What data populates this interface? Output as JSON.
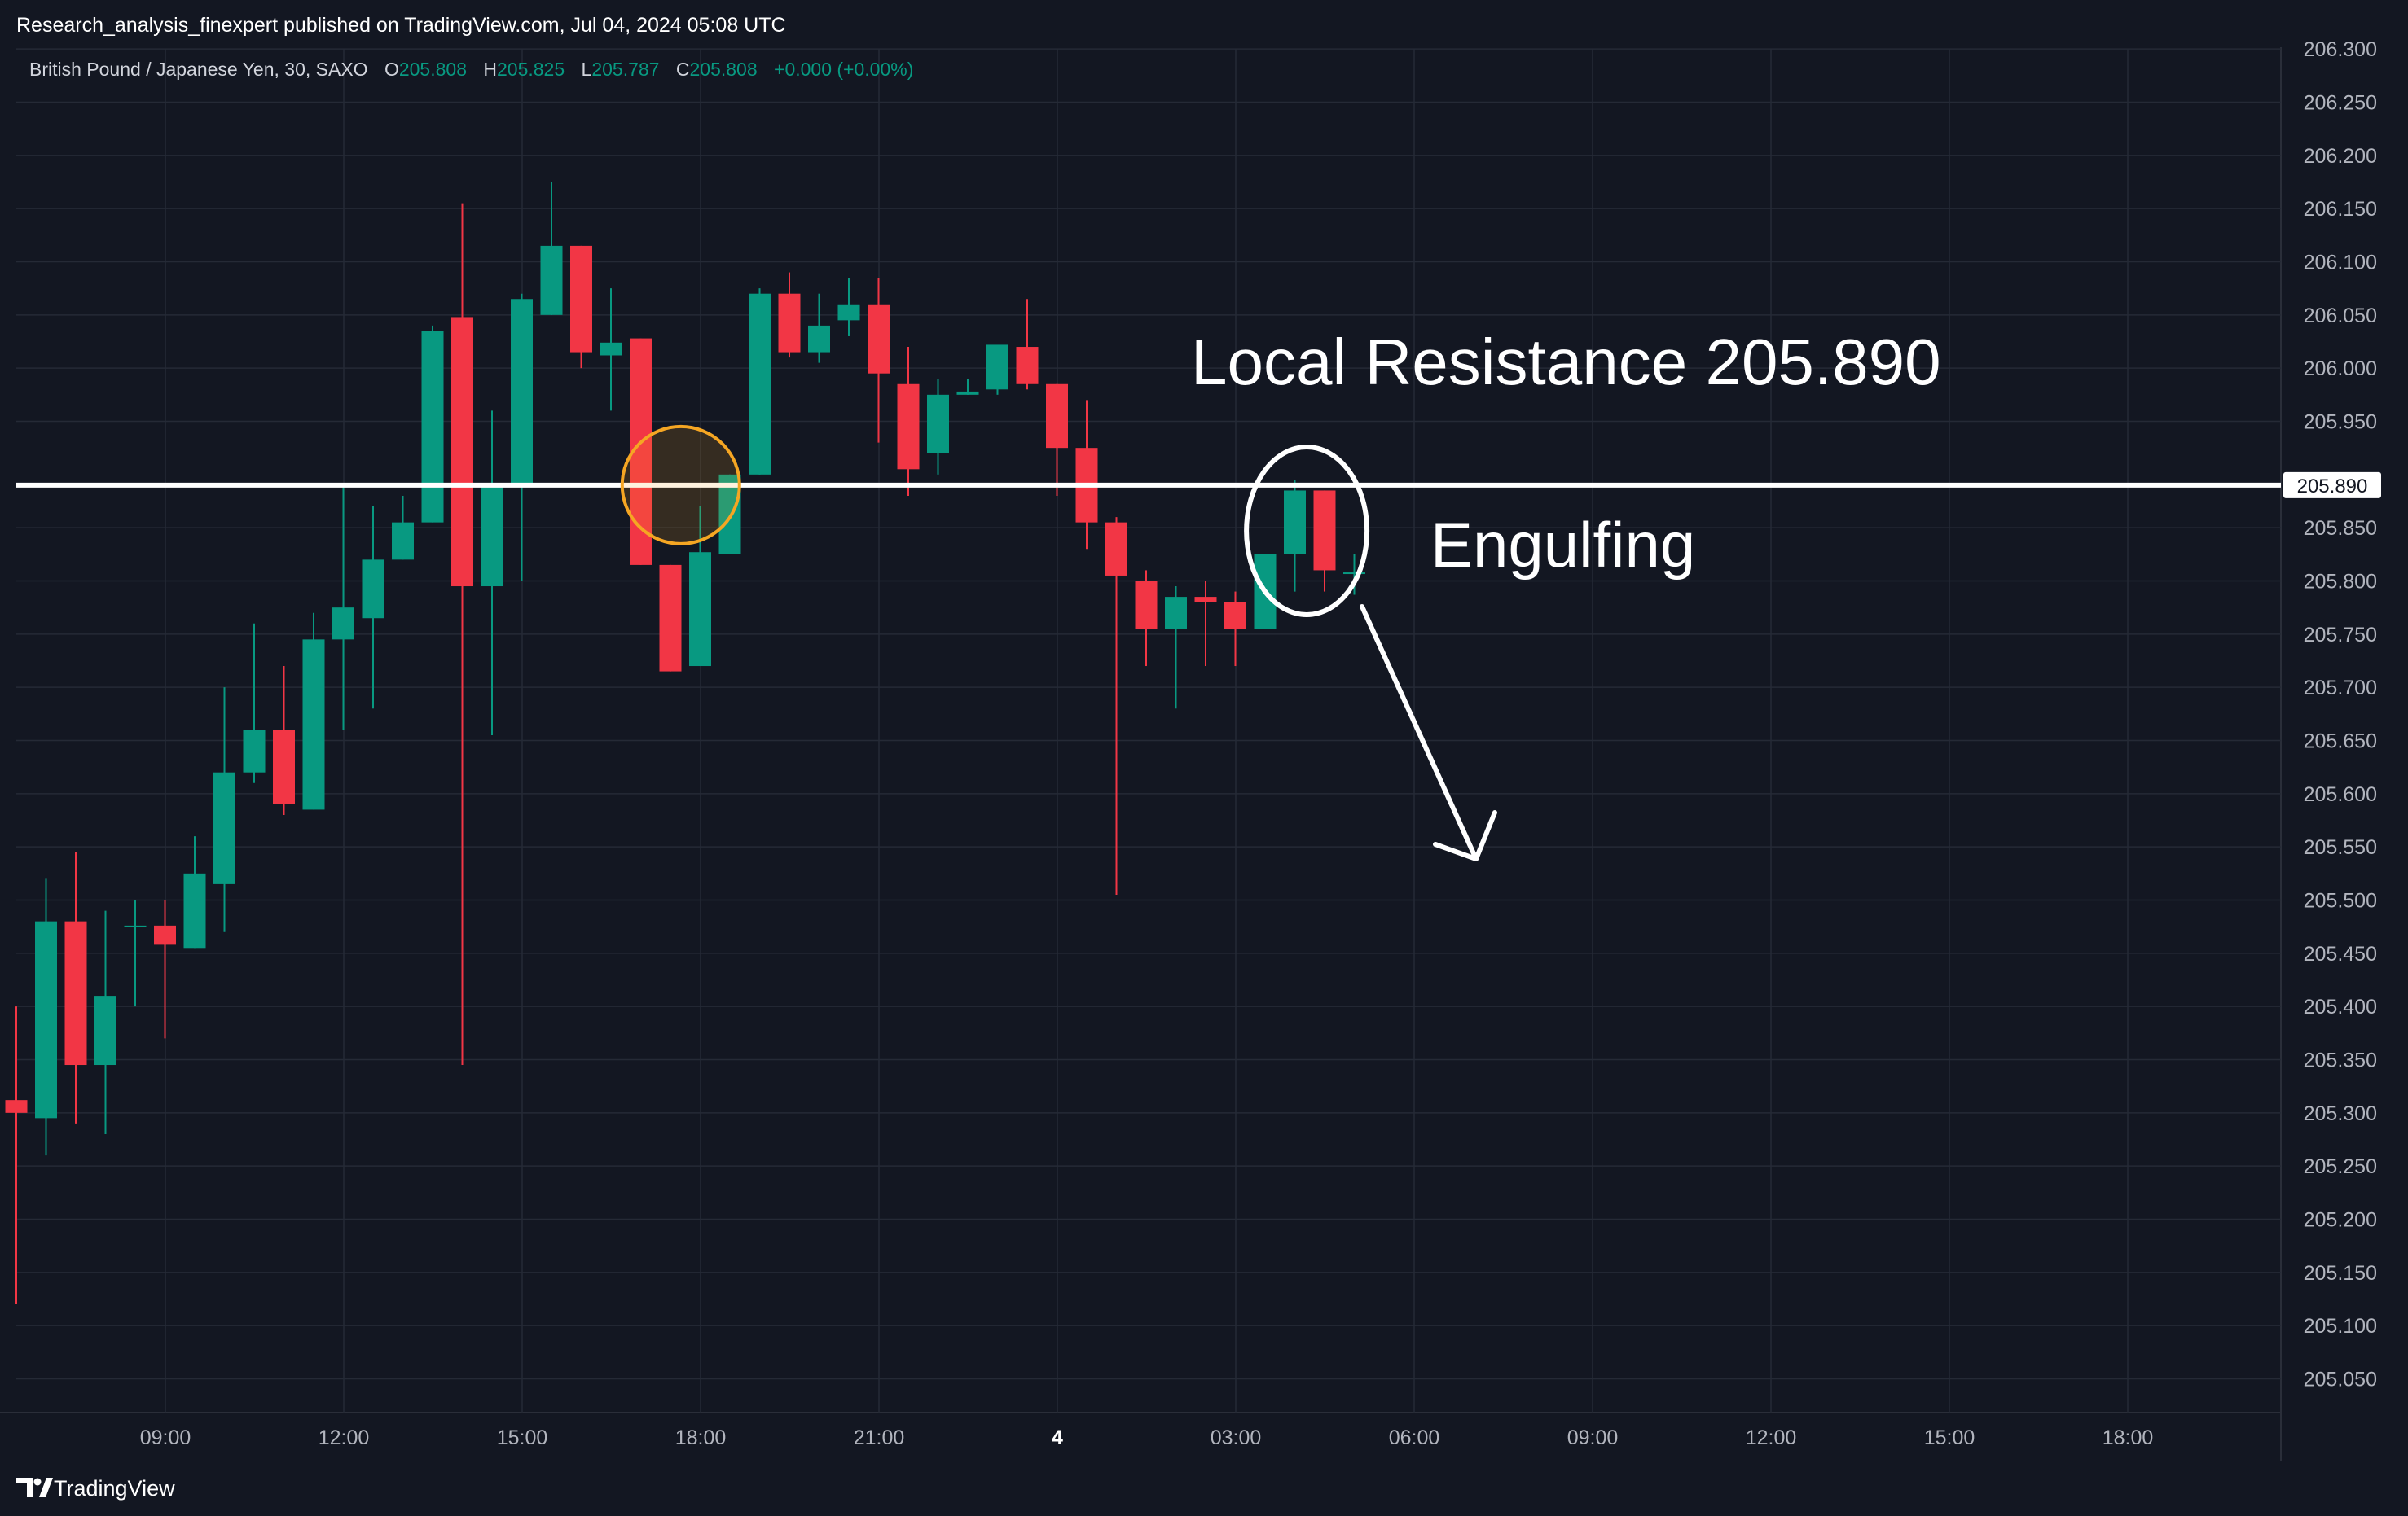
{
  "header": {
    "published": "Research_analysis_finexpert published on TradingView.com, Jul 04, 2024 05:08 UTC"
  },
  "legend": {
    "symbol": "British Pound / Japanese Yen, 30, SAXO",
    "o_label": "O",
    "o_value": "205.808",
    "h_label": "H",
    "h_value": "205.825",
    "l_label": "L",
    "l_value": "205.787",
    "c_label": "C",
    "c_value": "205.808",
    "change": "+0.000 (+0.00%)"
  },
  "footer": {
    "brand": "TradingView"
  },
  "colors": {
    "background": "#131722",
    "grid": "#252a36",
    "up": "#089981",
    "down": "#f23645",
    "text": "#b2b5be",
    "annotation": "#ffffff",
    "highlight_circle": "#f5a623"
  },
  "chart_data": {
    "type": "candlestick",
    "ylim": [
      205.02,
      206.3
    ],
    "y_ticks": [
      "206.300",
      "206.250",
      "206.200",
      "206.150",
      "206.100",
      "206.050",
      "206.000",
      "205.950",
      "205.850",
      "205.800",
      "205.750",
      "205.700",
      "205.650",
      "205.600",
      "205.550",
      "205.500",
      "205.450",
      "205.400",
      "205.350",
      "205.300",
      "205.250",
      "205.200",
      "205.150",
      "205.100",
      "205.050"
    ],
    "x_ticks": [
      "09:00",
      "12:00",
      "15:00",
      "18:00",
      "21:00",
      "4",
      "03:00",
      "06:00",
      "09:00",
      "12:00",
      "15:00",
      "18:00"
    ],
    "x_tick_bold_index": 5,
    "candles": [
      {
        "o": 205.312,
        "h": 205.4,
        "l": 205.12,
        "c": 205.3
      },
      {
        "o": 205.295,
        "h": 205.52,
        "l": 205.26,
        "c": 205.48
      },
      {
        "o": 205.48,
        "h": 205.545,
        "l": 205.29,
        "c": 205.345
      },
      {
        "o": 205.345,
        "h": 205.49,
        "l": 205.28,
        "c": 205.41
      },
      {
        "o": 205.475,
        "h": 205.5,
        "l": 205.4,
        "c": 205.476
      },
      {
        "o": 205.476,
        "h": 205.5,
        "l": 205.37,
        "c": 205.458
      },
      {
        "o": 205.455,
        "h": 205.56,
        "l": 205.455,
        "c": 205.525
      },
      {
        "o": 205.515,
        "h": 205.7,
        "l": 205.47,
        "c": 205.62
      },
      {
        "o": 205.62,
        "h": 205.76,
        "l": 205.61,
        "c": 205.66
      },
      {
        "o": 205.66,
        "h": 205.72,
        "l": 205.58,
        "c": 205.59
      },
      {
        "o": 205.585,
        "h": 205.77,
        "l": 205.585,
        "c": 205.745
      },
      {
        "o": 205.745,
        "h": 205.89,
        "l": 205.66,
        "c": 205.775
      },
      {
        "o": 205.765,
        "h": 205.87,
        "l": 205.68,
        "c": 205.82
      },
      {
        "o": 205.82,
        "h": 205.88,
        "l": 205.82,
        "c": 205.855
      },
      {
        "o": 205.855,
        "h": 206.04,
        "l": 205.855,
        "c": 206.035
      },
      {
        "o": 206.048,
        "h": 206.155,
        "l": 205.345,
        "c": 205.795
      },
      {
        "o": 205.795,
        "h": 205.96,
        "l": 205.655,
        "c": 205.892
      },
      {
        "o": 205.892,
        "h": 206.07,
        "l": 205.8,
        "c": 206.065
      },
      {
        "o": 206.05,
        "h": 206.175,
        "l": 206.05,
        "c": 206.115
      },
      {
        "o": 206.115,
        "h": 206.115,
        "l": 206.0,
        "c": 206.015
      },
      {
        "o": 206.012,
        "h": 206.075,
        "l": 205.96,
        "c": 206.024
      },
      {
        "o": 206.028,
        "h": 206.028,
        "l": 205.815,
        "c": 205.815
      },
      {
        "o": 205.815,
        "h": 205.815,
        "l": 205.715,
        "c": 205.715
      },
      {
        "o": 205.72,
        "h": 205.87,
        "l": 205.72,
        "c": 205.827
      },
      {
        "o": 205.825,
        "h": 205.9,
        "l": 205.825,
        "c": 205.9
      },
      {
        "o": 205.9,
        "h": 206.075,
        "l": 205.9,
        "c": 206.07
      },
      {
        "o": 206.07,
        "h": 206.09,
        "l": 206.01,
        "c": 206.015
      },
      {
        "o": 206.015,
        "h": 206.07,
        "l": 206.005,
        "c": 206.04
      },
      {
        "o": 206.045,
        "h": 206.085,
        "l": 206.03,
        "c": 206.06
      },
      {
        "o": 206.06,
        "h": 206.085,
        "l": 205.93,
        "c": 205.995
      },
      {
        "o": 205.985,
        "h": 206.02,
        "l": 205.88,
        "c": 205.905
      },
      {
        "o": 205.92,
        "h": 205.99,
        "l": 205.9,
        "c": 205.975
      },
      {
        "o": 205.975,
        "h": 205.99,
        "l": 205.975,
        "c": 205.978
      },
      {
        "o": 205.98,
        "h": 206.02,
        "l": 205.975,
        "c": 206.022
      },
      {
        "o": 206.02,
        "h": 206.065,
        "l": 205.98,
        "c": 205.985
      },
      {
        "o": 205.985,
        "h": 205.985,
        "l": 205.88,
        "c": 205.925
      },
      {
        "o": 205.925,
        "h": 205.97,
        "l": 205.83,
        "c": 205.855
      },
      {
        "o": 205.855,
        "h": 205.86,
        "l": 205.505,
        "c": 205.805
      },
      {
        "o": 205.8,
        "h": 205.81,
        "l": 205.72,
        "c": 205.755
      },
      {
        "o": 205.755,
        "h": 205.795,
        "l": 205.68,
        "c": 205.785
      },
      {
        "o": 205.785,
        "h": 205.8,
        "l": 205.72,
        "c": 205.78
      },
      {
        "o": 205.78,
        "h": 205.79,
        "l": 205.72,
        "c": 205.755
      },
      {
        "o": 205.755,
        "h": 205.825,
        "l": 205.755,
        "c": 205.825
      },
      {
        "o": 205.825,
        "h": 205.895,
        "l": 205.79,
        "c": 205.885
      },
      {
        "o": 205.885,
        "h": 205.885,
        "l": 205.79,
        "c": 205.81
      },
      {
        "o": 205.808,
        "h": 205.825,
        "l": 205.787,
        "c": 205.808
      }
    ],
    "resistance": {
      "value": 205.89,
      "label": "205.890"
    },
    "annotations": {
      "resistance_text": "Local Resistance 205.890",
      "pattern_text": "Engulfing"
    }
  }
}
